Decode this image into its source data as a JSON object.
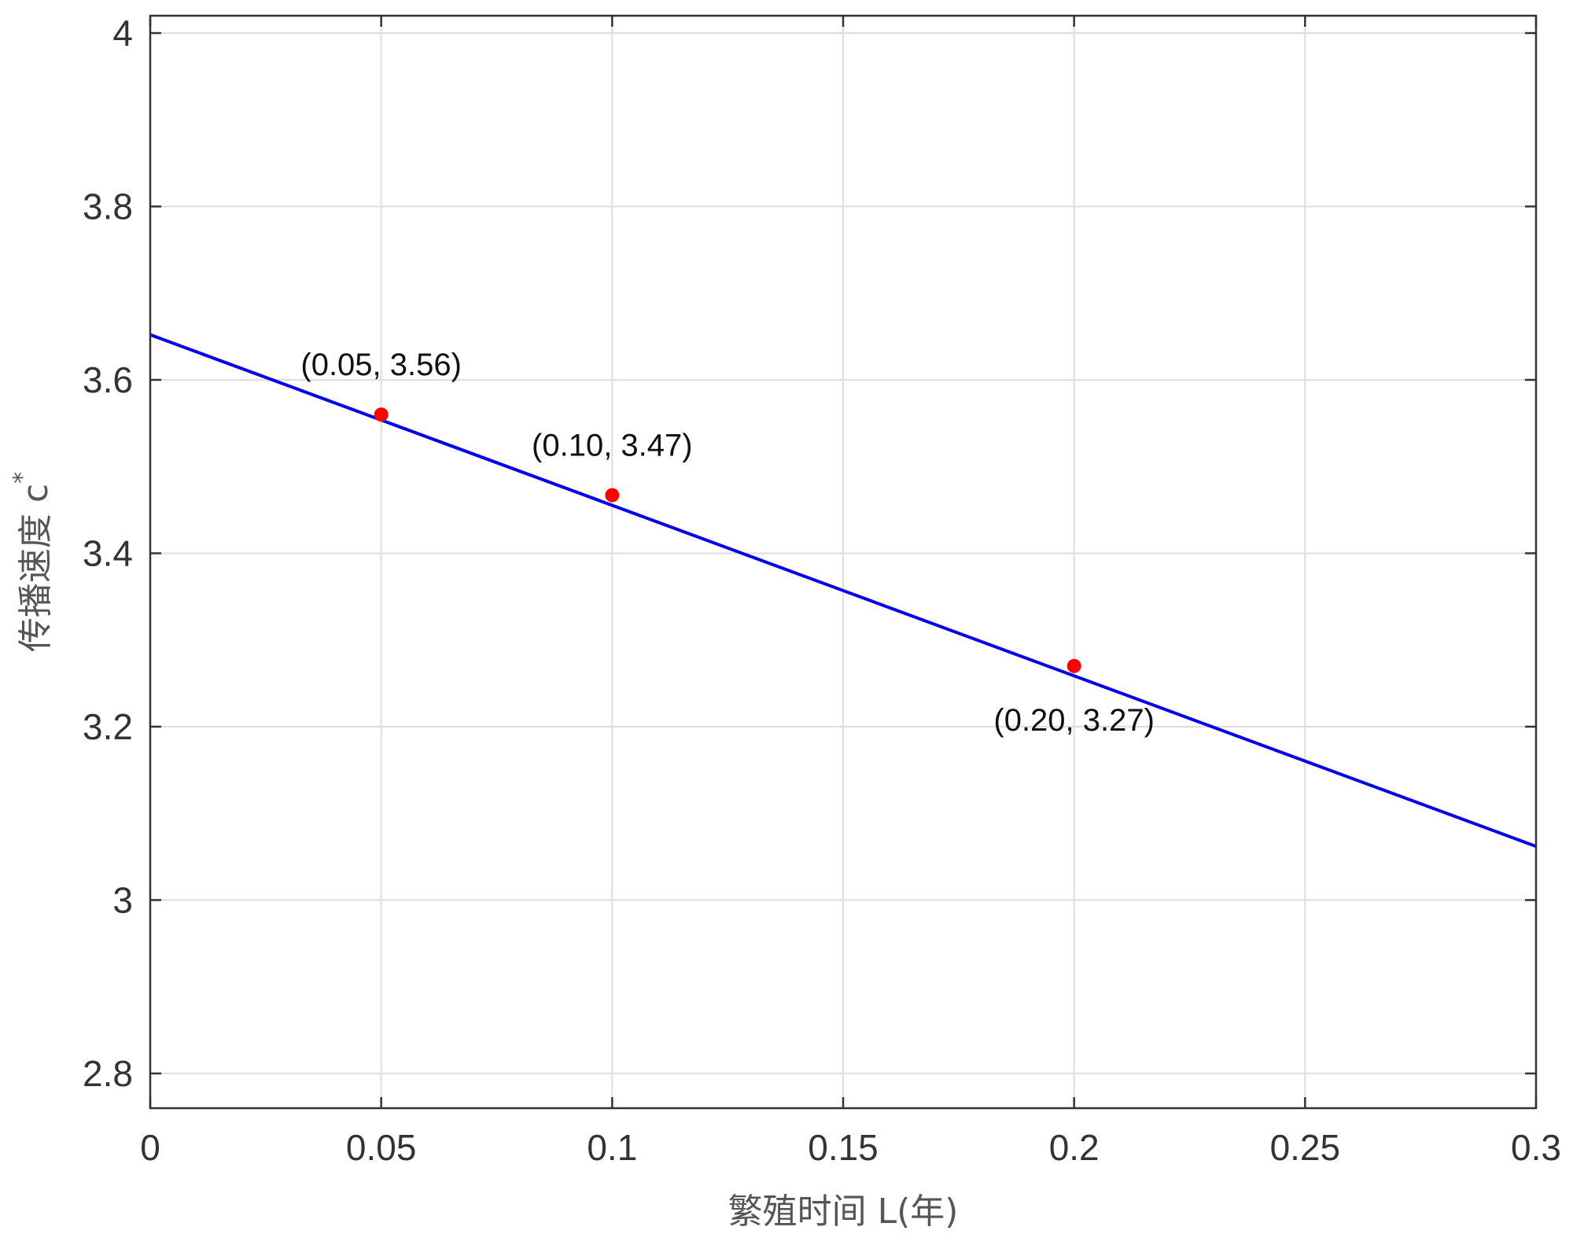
{
  "chart_data": {
    "type": "line",
    "xlabel": "繁殖时间 L(年)",
    "ylabel": "传播速度 c",
    "ylabel_superscript": "*",
    "xlim": [
      0,
      0.3
    ],
    "ylim": [
      2.76,
      4.02
    ],
    "xticks": [
      0,
      0.05,
      0.1,
      0.15,
      0.2,
      0.25,
      0.3
    ],
    "xtick_labels": [
      "0",
      "0.05",
      "0.1",
      "0.15",
      "0.2",
      "0.25",
      "0.3"
    ],
    "yticks": [
      2.8,
      3.0,
      3.2,
      3.4,
      3.6,
      3.8,
      4.0
    ],
    "ytick_labels": [
      "2.8",
      "3",
      "3.2",
      "3.4",
      "3.6",
      "3.8",
      "4"
    ],
    "grid": true,
    "series": [
      {
        "x": [
          0,
          0.3
        ],
        "y": [
          3.652,
          3.062
        ],
        "color": "#0000ee"
      }
    ],
    "points": [
      {
        "x": 0.05,
        "y": 3.56,
        "label": "(0.05, 3.56)",
        "label_position": "above"
      },
      {
        "x": 0.1,
        "y": 3.467,
        "label": "(0.10, 3.47)",
        "label_position": "above"
      },
      {
        "x": 0.2,
        "y": 3.27,
        "label": "(0.20, 3.27)",
        "label_position": "below"
      }
    ],
    "point_color": "#ff0000"
  }
}
